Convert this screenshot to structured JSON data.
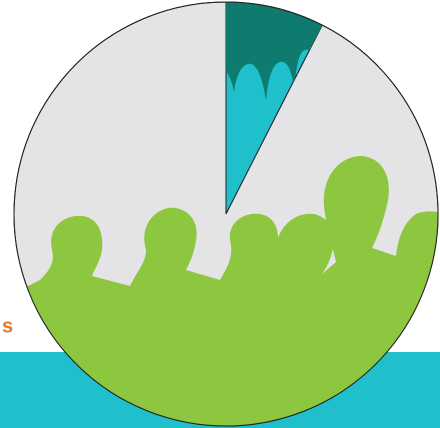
{
  "chart_data": {
    "type": "pie",
    "categories": [
      null,
      null
    ],
    "values": [
      7.5,
      92.5
    ],
    "colors": [
      "#1fc0cc",
      "#e4e4e6"
    ],
    "annotation": "s"
  }
}
